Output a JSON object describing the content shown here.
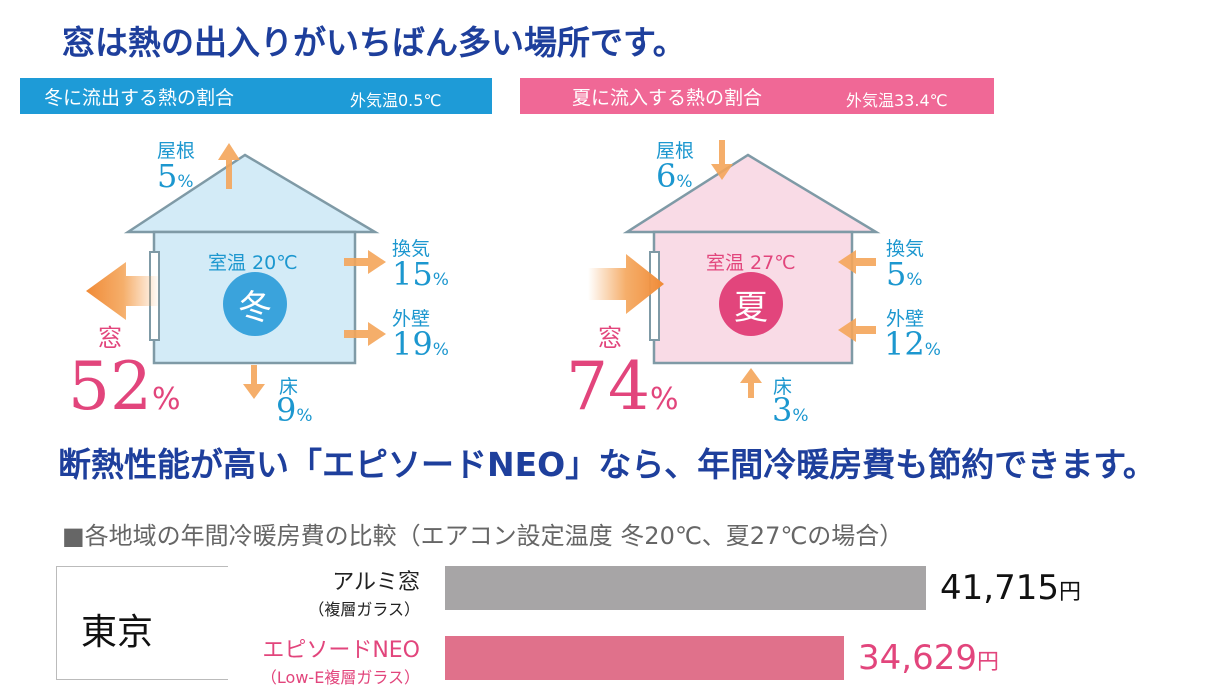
{
  "headline": "窓は熱の出入りがいちばん多い場所です。",
  "winter": {
    "banner_title": "冬に流出する熱の割合",
    "banner_temp": "外気温0.5℃",
    "room_temp": "室温 20℃",
    "season": "冬",
    "roof": {
      "label": "屋根",
      "value": "5"
    },
    "vent": {
      "label": "換気",
      "value": "15"
    },
    "wall": {
      "label": "外壁",
      "value": "19"
    },
    "floor": {
      "label": "床",
      "value": "9"
    },
    "window": {
      "label": "窓",
      "value": "52"
    },
    "pct": "%"
  },
  "summer": {
    "banner_title": "夏に流入する熱の割合",
    "banner_temp": "外気温33.4℃",
    "room_temp": "室温 27℃",
    "season": "夏",
    "roof": {
      "label": "屋根",
      "value": "6"
    },
    "vent": {
      "label": "換気",
      "value": "5"
    },
    "wall": {
      "label": "外壁",
      "value": "12"
    },
    "floor": {
      "label": "床",
      "value": "3"
    },
    "window": {
      "label": "窓",
      "value": "74"
    },
    "pct": "%"
  },
  "headline2": "断熱性能が高い「エピソードNEO」なら、年間冷暖房費も節約できます。",
  "comparison": {
    "title": "■各地域の年間冷暖房費の比較（エアコン設定温度 冬20℃、夏27℃の場合）",
    "city": "東京",
    "yen": "円",
    "rows": [
      {
        "name": "アルミ窓",
        "sub": "（複層ガラス）",
        "value": 41715,
        "value_text": "41,715",
        "color": "#a7a5a6",
        "label_color": "#222222",
        "value_color": "#111111"
      },
      {
        "name": "エピソードNEO",
        "sub": "（Low-E複層ガラス）",
        "value": 34629,
        "value_text": "34,629",
        "color": "#e0718b",
        "label_color": "#e2457c",
        "value_color": "#e2457c"
      }
    ]
  },
  "colors": {
    "blue_heading": "#1e3f9c",
    "winter_banner": "#1e9bd7",
    "summer_banner": "#f06896",
    "arrow": "#f4a55a",
    "winter_house": "#d3ebf7",
    "summer_house": "#f9dbe6"
  }
}
